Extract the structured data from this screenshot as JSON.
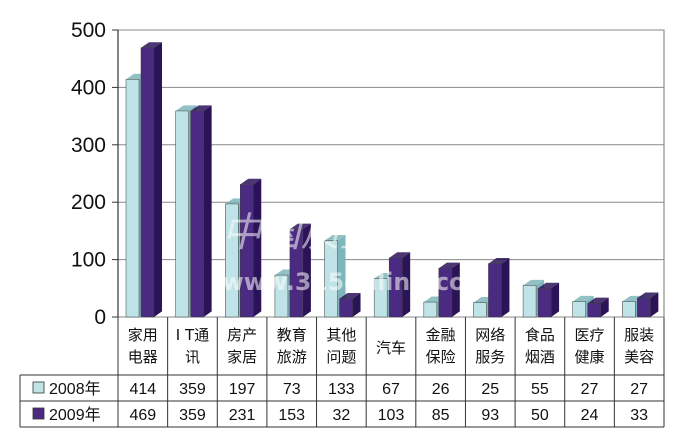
{
  "watermark": {
    "name": "中国质量万里行",
    "url": "www.315online.com"
  },
  "colors": {
    "series_2008": "#bfe3e6",
    "series_2009": "#4b2a82"
  },
  "chart_data": {
    "type": "bar",
    "title": "",
    "xlabel": "",
    "ylabel": "",
    "ylim": [
      0,
      500
    ],
    "yticks": [
      "0",
      "100",
      "200",
      "300",
      "400",
      "500"
    ],
    "grid": true,
    "legend": "left of data table",
    "categories": [
      [
        "家用",
        "电器"
      ],
      [
        "I T通",
        "讯"
      ],
      [
        "房产",
        "家居"
      ],
      [
        "教育",
        "旅游"
      ],
      [
        "其他",
        "问题"
      ],
      [
        "汽车"
      ],
      [
        "金融",
        "保险"
      ],
      [
        "网络",
        "服务"
      ],
      [
        "食品",
        "烟酒"
      ],
      [
        "医疗",
        "健康"
      ],
      [
        "服装",
        "美容"
      ]
    ],
    "series": [
      {
        "name": "2008年",
        "values": [
          414,
          359,
          197,
          73,
          133,
          67,
          26,
          25,
          55,
          27,
          27
        ]
      },
      {
        "name": "2009年",
        "values": [
          469,
          359,
          231,
          153,
          32,
          103,
          85,
          93,
          50,
          24,
          33
        ]
      }
    ]
  }
}
